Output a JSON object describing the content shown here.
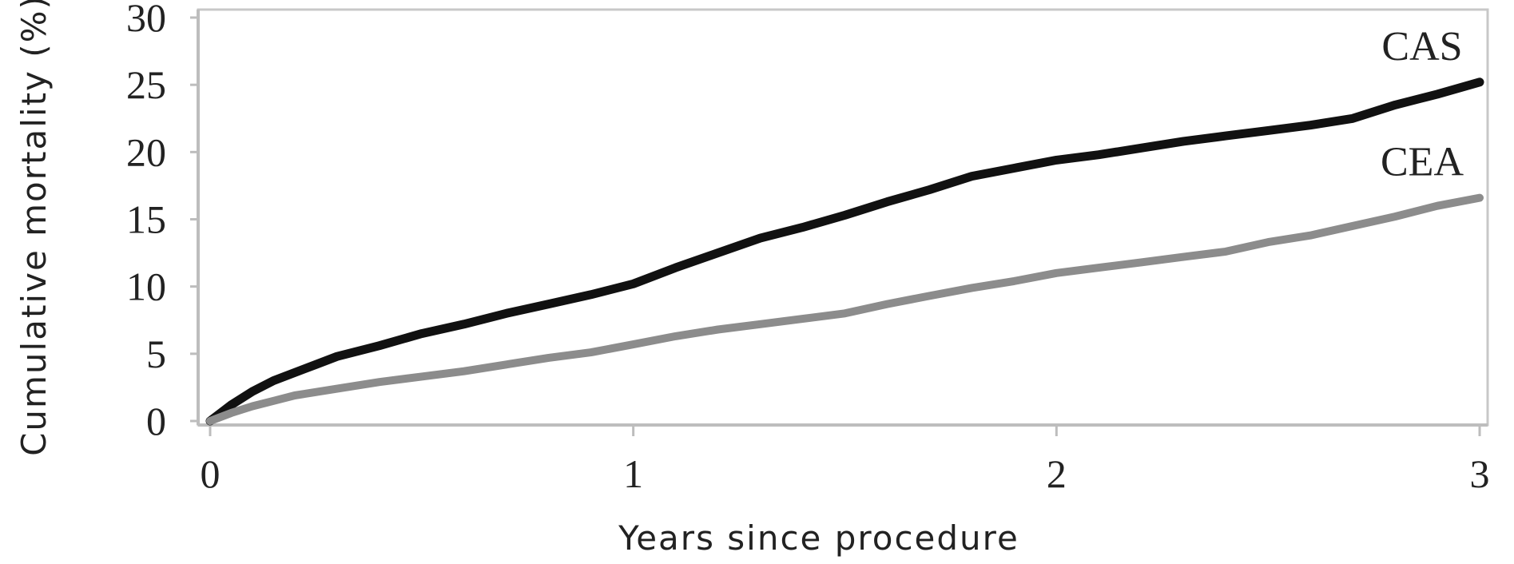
{
  "chart_data": {
    "type": "line",
    "title": "",
    "xlabel": "Years since procedure",
    "ylabel": "Cumulative mortality (%)",
    "xlim": [
      0,
      3
    ],
    "ylim": [
      0,
      30
    ],
    "x_ticks": [
      "0",
      "1",
      "2",
      "3"
    ],
    "y_ticks": [
      "0",
      "5",
      "10",
      "15",
      "20",
      "25",
      "30"
    ],
    "grid": false,
    "legend": "none",
    "series": [
      {
        "name": "CAS",
        "color": "#111111",
        "x": [
          0,
          0.05,
          0.1,
          0.15,
          0.2,
          0.25,
          0.3,
          0.4,
          0.5,
          0.6,
          0.7,
          0.8,
          0.9,
          1.0,
          1.1,
          1.2,
          1.3,
          1.4,
          1.5,
          1.6,
          1.7,
          1.8,
          1.9,
          2.0,
          2.1,
          2.2,
          2.3,
          2.4,
          2.5,
          2.6,
          2.7,
          2.8,
          2.9,
          3.0
        ],
        "y": [
          0,
          1.2,
          2.2,
          3.0,
          3.6,
          4.2,
          4.8,
          5.6,
          6.5,
          7.2,
          8.0,
          8.7,
          9.4,
          10.2,
          11.4,
          12.5,
          13.6,
          14.4,
          15.3,
          16.3,
          17.2,
          18.2,
          18.8,
          19.4,
          19.8,
          20.3,
          20.8,
          21.2,
          21.6,
          22.0,
          22.5,
          23.5,
          24.3,
          25.2
        ]
      },
      {
        "name": "CEA",
        "color": "#8c8c8c",
        "x": [
          0,
          0.05,
          0.1,
          0.15,
          0.2,
          0.3,
          0.4,
          0.5,
          0.6,
          0.7,
          0.8,
          0.9,
          1.0,
          1.1,
          1.2,
          1.3,
          1.4,
          1.5,
          1.6,
          1.7,
          1.8,
          1.9,
          2.0,
          2.1,
          2.2,
          2.3,
          2.4,
          2.5,
          2.6,
          2.7,
          2.8,
          2.9,
          3.0
        ],
        "y": [
          0,
          0.6,
          1.1,
          1.5,
          1.9,
          2.4,
          2.9,
          3.3,
          3.7,
          4.2,
          4.7,
          5.1,
          5.7,
          6.3,
          6.8,
          7.2,
          7.6,
          8.0,
          8.7,
          9.3,
          9.9,
          10.4,
          11.0,
          11.4,
          11.8,
          12.2,
          12.6,
          13.3,
          13.8,
          14.5,
          15.2,
          16.0,
          16.6
        ]
      }
    ]
  }
}
